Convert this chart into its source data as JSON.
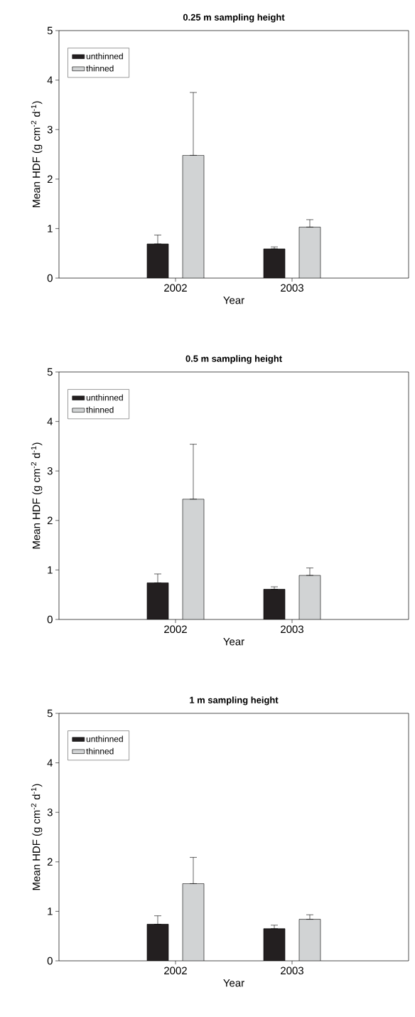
{
  "chart_data": [
    {
      "type": "bar",
      "title": "0.25 m sampling height",
      "xlabel": "Year",
      "ylabel": "Mean HDF (g cm$^{-2}$ d$^{-1}$)",
      "categories": [
        "2002",
        "2003"
      ],
      "ylim": [
        0,
        5
      ],
      "yticks": [
        0,
        1,
        2,
        3,
        4,
        5
      ],
      "legend": "top left",
      "series": [
        {
          "name": "unthinned",
          "color": "#231f20",
          "values": [
            0.69,
            0.59
          ],
          "errors": [
            [
              0.69,
              0.87
            ],
            [
              0.59,
              0.63
            ]
          ]
        },
        {
          "name": "thinned",
          "color": "#d1d3d4",
          "values": [
            2.48,
            1.03
          ],
          "errors": [
            [
              2.48,
              3.75
            ],
            [
              1.03,
              1.18
            ]
          ]
        }
      ]
    },
    {
      "type": "bar",
      "title": "0.5 m sampling height",
      "xlabel": "Year",
      "ylabel": "Mean HDF (g cm$^{-2}$ d$^{-1}$)",
      "categories": [
        "2002",
        "2003"
      ],
      "ylim": [
        0,
        5
      ],
      "yticks": [
        0,
        1,
        2,
        3,
        4,
        5
      ],
      "legend": "top left",
      "series": [
        {
          "name": "unthinned",
          "color": "#231f20",
          "values": [
            0.74,
            0.61
          ],
          "errors": [
            [
              0.74,
              0.92
            ],
            [
              0.61,
              0.66
            ]
          ]
        },
        {
          "name": "thinned",
          "color": "#d1d3d4",
          "values": [
            2.43,
            0.89
          ],
          "errors": [
            [
              2.43,
              3.54
            ],
            [
              0.89,
              1.04
            ]
          ]
        }
      ]
    },
    {
      "type": "bar",
      "title": "1 m sampling height",
      "xlabel": "Year",
      "ylabel": "Mean HDF (g cm$^{-2}$ d$^{-1}$)",
      "categories": [
        "2002",
        "2003"
      ],
      "ylim": [
        0,
        5
      ],
      "yticks": [
        0,
        1,
        2,
        3,
        4,
        5
      ],
      "legend": "top left",
      "series": [
        {
          "name": "unthinned",
          "color": "#231f20",
          "values": [
            0.74,
            0.65
          ],
          "errors": [
            [
              0.74,
              0.91
            ],
            [
              0.65,
              0.72
            ]
          ]
        },
        {
          "name": "thinned",
          "color": "#d1d3d4",
          "values": [
            1.56,
            0.84
          ],
          "errors": [
            [
              1.56,
              2.09
            ],
            [
              0.84,
              0.93
            ]
          ]
        }
      ]
    }
  ]
}
